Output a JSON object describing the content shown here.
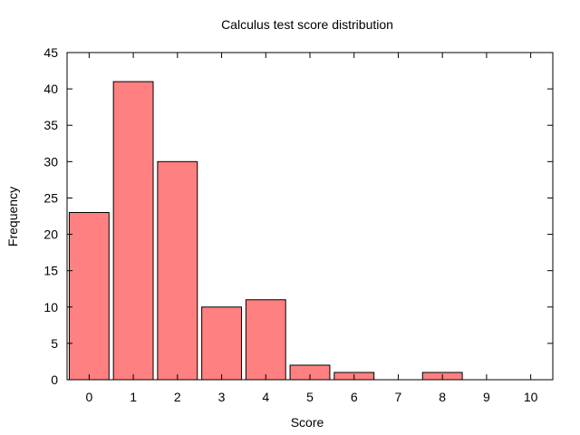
{
  "chart_data": {
    "type": "bar",
    "title": "Calculus test score distribution",
    "xlabel": "Score",
    "ylabel": "Frequency",
    "categories": [
      "0",
      "1",
      "2",
      "3",
      "4",
      "5",
      "6",
      "7",
      "8",
      "9",
      "10"
    ],
    "values": [
      23,
      41,
      30,
      10,
      11,
      2,
      1,
      0,
      1,
      0,
      0
    ],
    "ylim": [
      0,
      45
    ],
    "yticks": [
      0,
      5,
      10,
      15,
      20,
      25,
      30,
      35,
      40,
      45
    ],
    "grid": false,
    "legend": "none",
    "colors": {
      "bar_fill": "#ff8080",
      "bar_stroke": "#000000",
      "axis": "#000000"
    }
  }
}
